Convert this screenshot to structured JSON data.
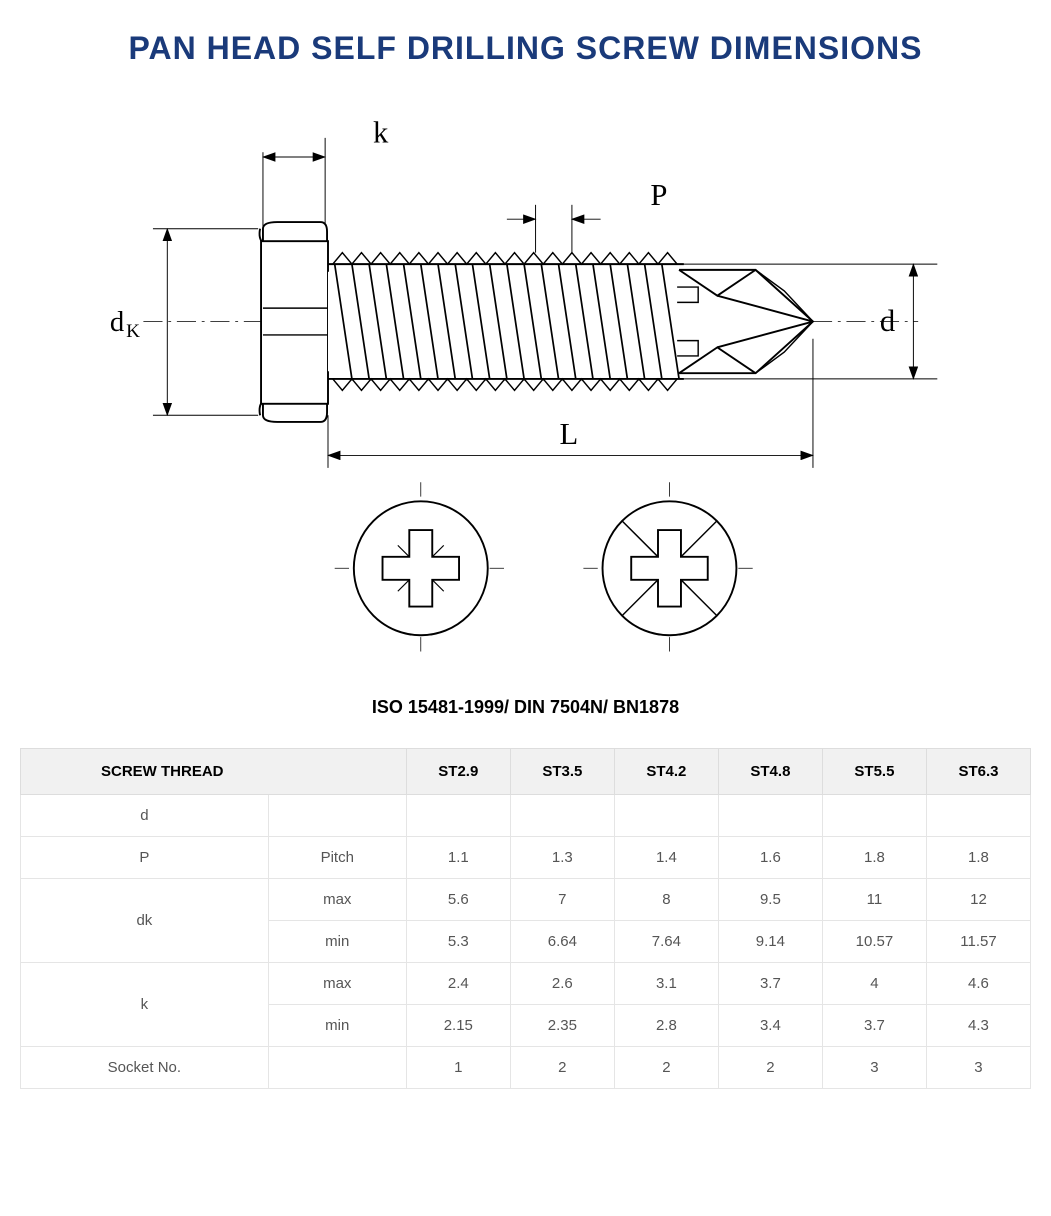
{
  "title": "PAN HEAD SELF DRILLING SCREW DIMENSIONS",
  "title_color": "#1a3a7a",
  "title_fontsize": 32,
  "standard_line": "ISO 15481-1999/ DIN 7504N/ BN1878",
  "standard_fontsize": 18,
  "diagram": {
    "labels": {
      "k": "k",
      "P": "P",
      "dk": "dₖ",
      "d": "d",
      "L": "L"
    },
    "label_fontsize": 30,
    "stroke_color": "#000000",
    "line_width_main": 2,
    "line_width_dim": 1,
    "drive_types": [
      "phillips",
      "pozidriv"
    ]
  },
  "table": {
    "header_bg": "#f1f1f1",
    "border_color": "#dddddd",
    "columns": [
      "SCREW THREAD",
      "",
      "ST2.9",
      "ST3.5",
      "ST4.2",
      "ST4.8",
      "ST5.5",
      "ST6.3"
    ],
    "rows": [
      {
        "label": "d",
        "sub": "",
        "vals": [
          "",
          "",
          "",
          "",
          "",
          ""
        ]
      },
      {
        "label": "P",
        "sub": "Pitch",
        "vals": [
          "1.1",
          "1.3",
          "1.4",
          "1.6",
          "1.8",
          "1.8"
        ]
      },
      {
        "label": "dk",
        "rowspan": 2,
        "sub": "max",
        "vals": [
          "5.6",
          "7",
          "8",
          "9.5",
          "11",
          "12"
        ]
      },
      {
        "label": "",
        "sub": "min",
        "vals": [
          "5.3",
          "6.64",
          "7.64",
          "9.14",
          "10.57",
          "11.57"
        ]
      },
      {
        "label": "k",
        "rowspan": 2,
        "sub": "max",
        "vals": [
          "2.4",
          "2.6",
          "3.1",
          "3.7",
          "4",
          "4.6"
        ]
      },
      {
        "label": "",
        "sub": "min",
        "vals": [
          "2.15",
          "2.35",
          "2.8",
          "3.4",
          "3.7",
          "4.3"
        ]
      },
      {
        "label": "Socket No.",
        "sub": "",
        "vals": [
          "1",
          "2",
          "2",
          "2",
          "3",
          "3"
        ]
      }
    ]
  }
}
